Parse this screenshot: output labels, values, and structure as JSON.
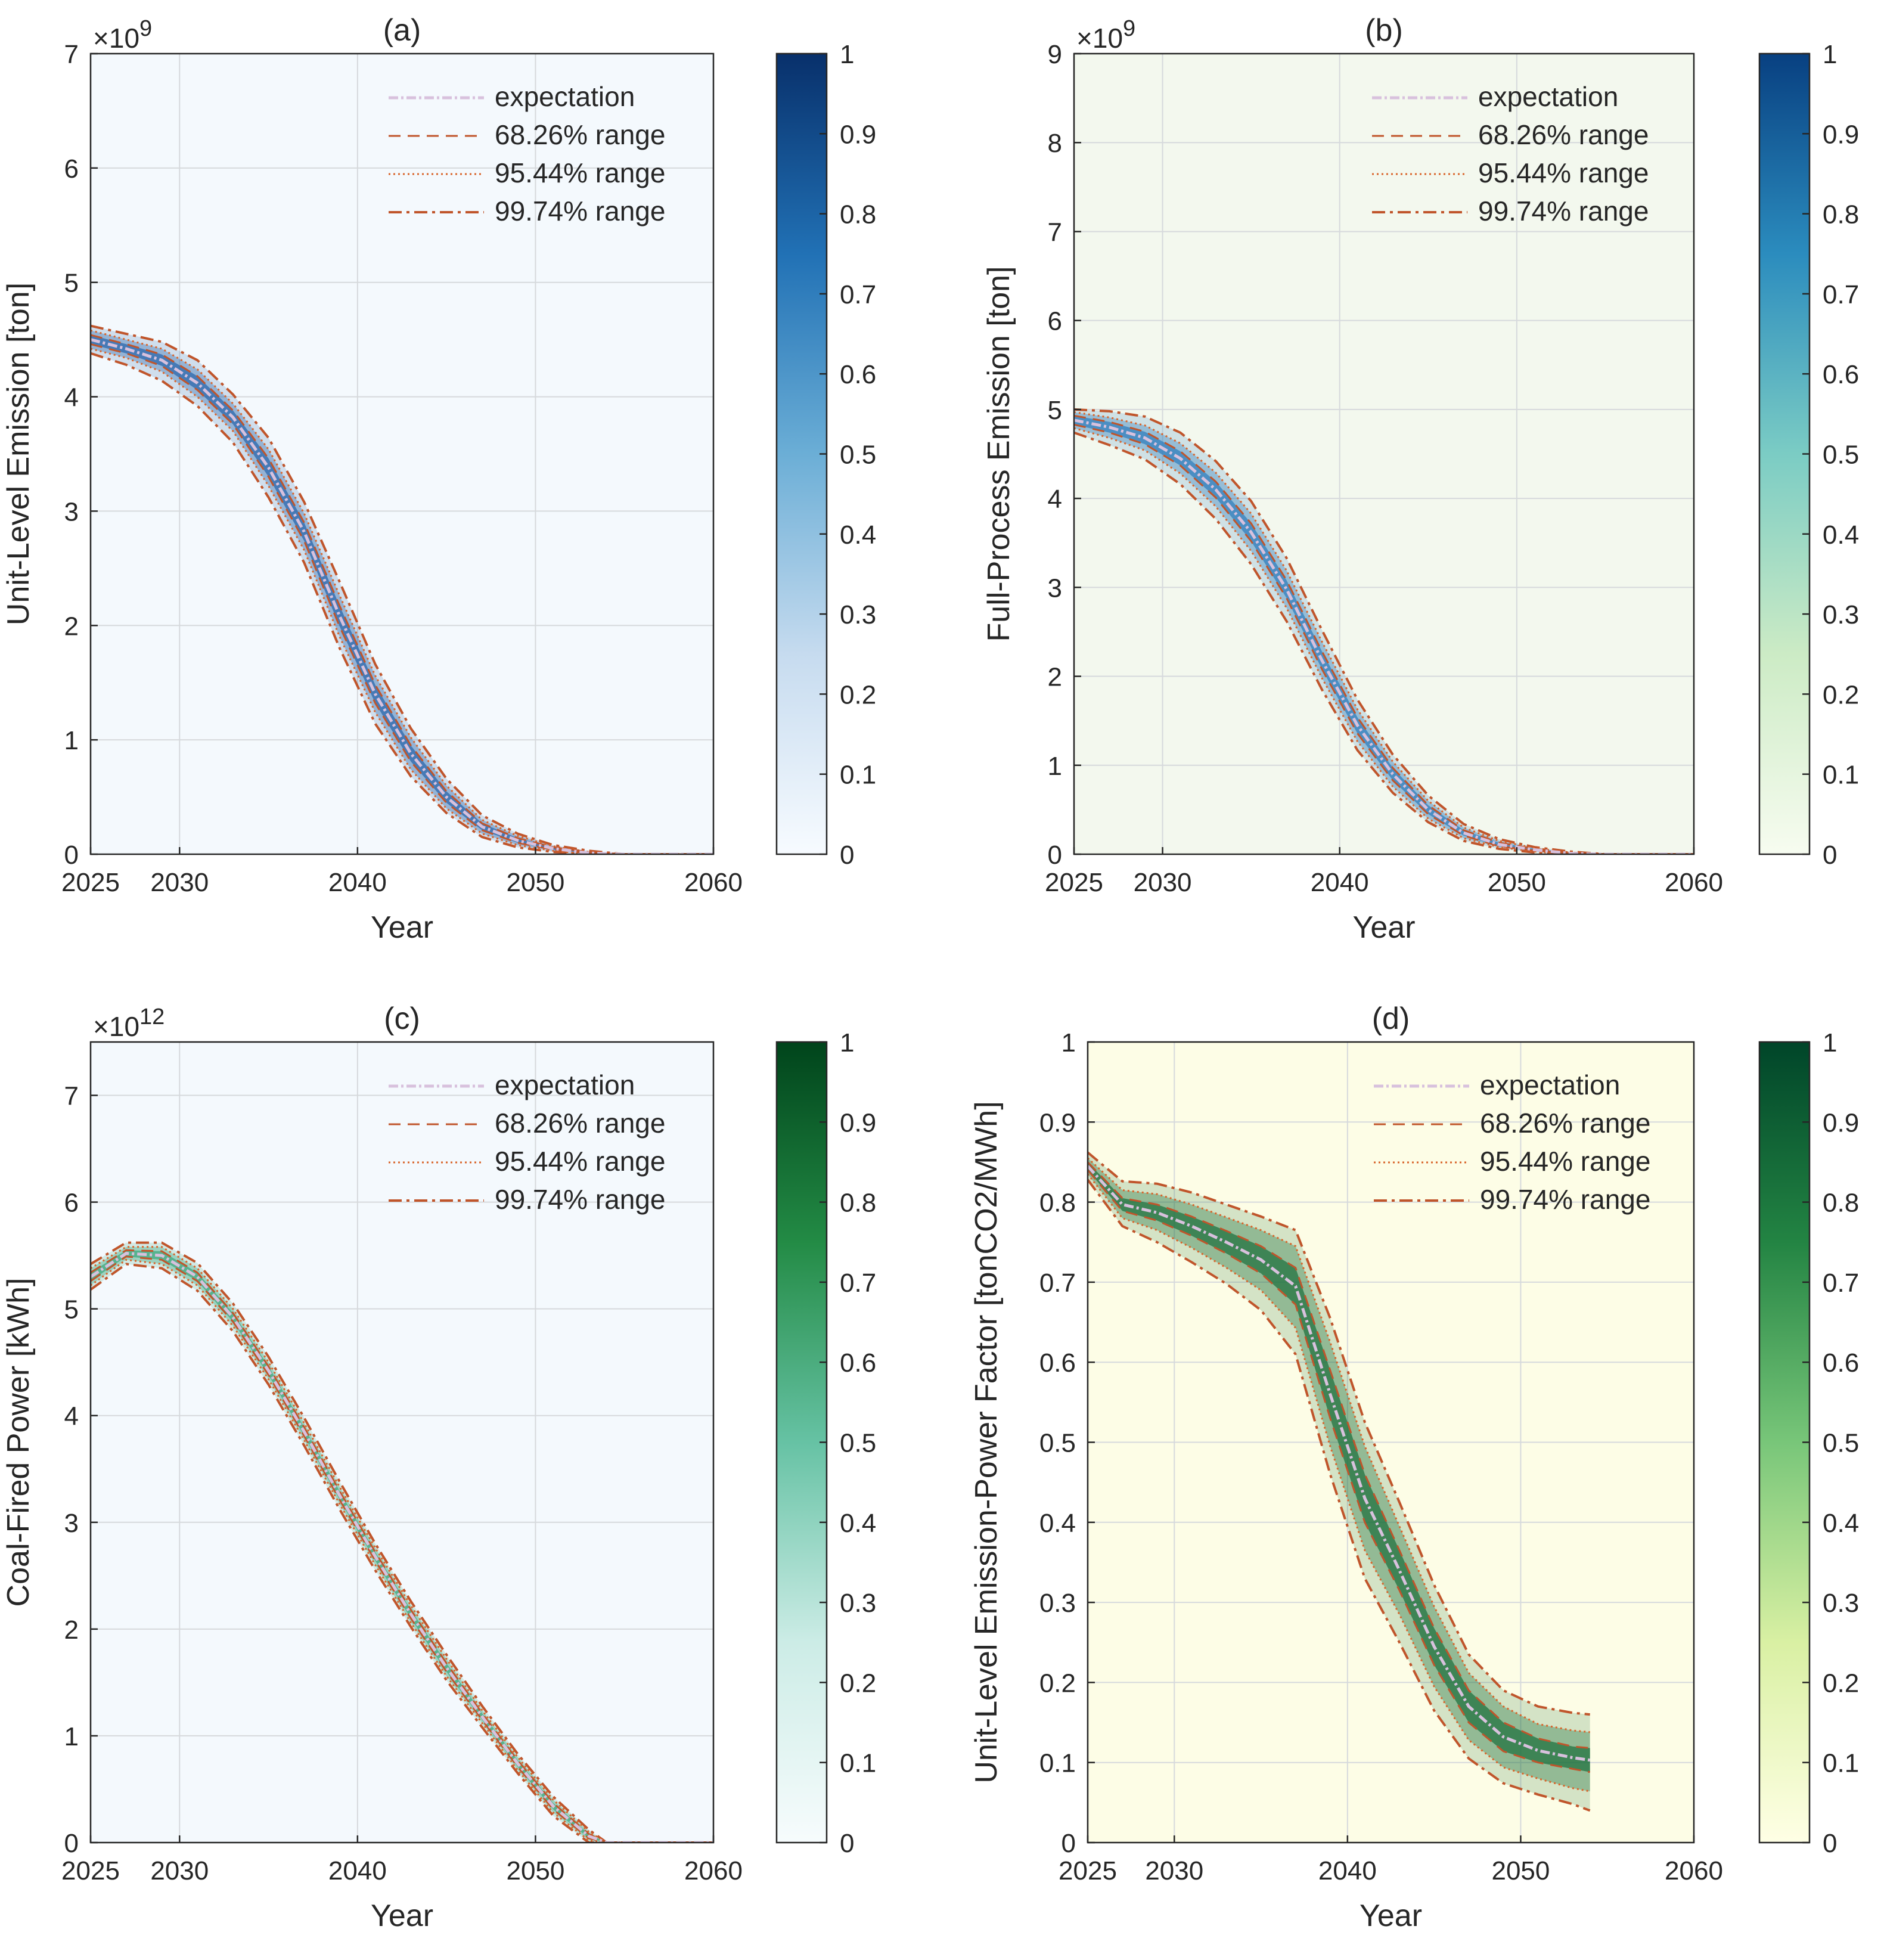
{
  "chart_data": [
    {
      "type": "line",
      "title": "(a)",
      "xlabel": "Year",
      "ylabel": "Unit-Level Emission [ton]",
      "exponent_label": "×10",
      "exponent_power": "9",
      "xlim": [
        2025,
        2060
      ],
      "ylim": [
        0,
        7
      ],
      "xticks": [
        "2025",
        "2030",
        "2040",
        "2050",
        "2060"
      ],
      "yticks": [
        "0",
        "1",
        "2",
        "3",
        "4",
        "5",
        "6",
        "7"
      ],
      "colorbar_ticks": [
        "0",
        "0.1",
        "0.2",
        "0.3",
        "0.4",
        "0.5",
        "0.6",
        "0.7",
        "0.8",
        "0.9",
        "1"
      ],
      "colormap": [
        "#f7fbff",
        "#c6dbef",
        "#6baed6",
        "#2171b5",
        "#08306b"
      ],
      "background": "#f4f9fd",
      "density_color": "#2563a8",
      "legend_position": "top-right",
      "legend": [
        "expectation",
        "68.26% range",
        "95.44% range",
        "99.74% range"
      ],
      "x": [
        2025,
        2027,
        2029,
        2031,
        2033,
        2035,
        2037,
        2039,
        2041,
        2043,
        2045,
        2047,
        2049,
        2051,
        2053,
        2055,
        2057,
        2060
      ],
      "series": [
        {
          "name": "expectation",
          "values": [
            4.5,
            4.42,
            4.32,
            4.12,
            3.82,
            3.38,
            2.82,
            2.08,
            1.4,
            0.88,
            0.5,
            0.24,
            0.12,
            0.05,
            0.01,
            0.0,
            0.0,
            0.0
          ]
        },
        {
          "name": "68.26% range",
          "upper": [
            4.54,
            4.46,
            4.37,
            4.18,
            3.88,
            3.46,
            2.9,
            2.17,
            1.48,
            0.95,
            0.55,
            0.27,
            0.14,
            0.06,
            0.02,
            0.0,
            0.0,
            0.0
          ],
          "lower": [
            4.46,
            4.38,
            4.27,
            4.06,
            3.76,
            3.3,
            2.74,
            1.99,
            1.32,
            0.81,
            0.45,
            0.21,
            0.1,
            0.04,
            0.01,
            0.0,
            0.0,
            0.0
          ]
        },
        {
          "name": "95.44% range",
          "upper": [
            4.58,
            4.5,
            4.42,
            4.24,
            3.94,
            3.54,
            2.98,
            2.26,
            1.56,
            1.02,
            0.6,
            0.3,
            0.16,
            0.07,
            0.02,
            0.0,
            0.0,
            0.0
          ],
          "lower": [
            4.42,
            4.34,
            4.22,
            4.0,
            3.7,
            3.22,
            2.66,
            1.9,
            1.24,
            0.74,
            0.4,
            0.18,
            0.08,
            0.03,
            0.0,
            0.0,
            0.0,
            0.0
          ]
        },
        {
          "name": "99.74% range",
          "upper": [
            4.62,
            4.55,
            4.48,
            4.32,
            4.02,
            3.64,
            3.08,
            2.38,
            1.66,
            1.1,
            0.66,
            0.34,
            0.18,
            0.08,
            0.03,
            0.0,
            0.0,
            0.0
          ],
          "lower": [
            4.38,
            4.28,
            4.14,
            3.92,
            3.6,
            3.12,
            2.55,
            1.8,
            1.14,
            0.68,
            0.36,
            0.15,
            0.06,
            0.02,
            0.0,
            0.0,
            0.0,
            0.0
          ]
        }
      ]
    },
    {
      "type": "line",
      "title": "(b)",
      "xlabel": "Year",
      "ylabel": "Full-Process Emission [ton]",
      "exponent_label": "×10",
      "exponent_power": "9",
      "xlim": [
        2025,
        2060
      ],
      "ylim": [
        0,
        9
      ],
      "xticks": [
        "2025",
        "2030",
        "2040",
        "2050",
        "2060"
      ],
      "yticks": [
        "0",
        "1",
        "2",
        "3",
        "4",
        "5",
        "6",
        "7",
        "8",
        "9"
      ],
      "colorbar_ticks": [
        "0",
        "0.1",
        "0.2",
        "0.3",
        "0.4",
        "0.5",
        "0.6",
        "0.7",
        "0.8",
        "0.9",
        "1"
      ],
      "colormap": [
        "#f7fcf0",
        "#ccebc5",
        "#7bccc4",
        "#2b8cbe",
        "#084081"
      ],
      "background": "#f3f8ee",
      "density_color": "#2b7bba",
      "legend_position": "top-right",
      "legend": [
        "expectation",
        "68.26% range",
        "95.44% range",
        "99.74% range"
      ],
      "x": [
        2025,
        2027,
        2029,
        2031,
        2033,
        2035,
        2037,
        2039,
        2041,
        2043,
        2045,
        2047,
        2049,
        2051,
        2053,
        2055,
        2057,
        2060
      ],
      "series": [
        {
          "name": "expectation",
          "values": [
            4.88,
            4.8,
            4.68,
            4.45,
            4.1,
            3.62,
            2.98,
            2.18,
            1.45,
            0.9,
            0.5,
            0.24,
            0.11,
            0.05,
            0.01,
            0.0,
            0.0,
            0.0
          ]
        },
        {
          "name": "68.26% range",
          "upper": [
            4.93,
            4.86,
            4.75,
            4.53,
            4.19,
            3.72,
            3.08,
            2.28,
            1.54,
            0.97,
            0.55,
            0.27,
            0.13,
            0.06,
            0.02,
            0.0,
            0.0,
            0.0
          ],
          "lower": [
            4.83,
            4.74,
            4.61,
            4.37,
            4.01,
            3.52,
            2.88,
            2.08,
            1.36,
            0.83,
            0.45,
            0.21,
            0.09,
            0.04,
            0.01,
            0.0,
            0.0,
            0.0
          ]
        },
        {
          "name": "95.44% range",
          "upper": [
            4.97,
            4.91,
            4.82,
            4.62,
            4.29,
            3.83,
            3.19,
            2.39,
            1.63,
            1.04,
            0.6,
            0.3,
            0.15,
            0.07,
            0.02,
            0.0,
            0.0,
            0.0
          ],
          "lower": [
            4.79,
            4.68,
            4.54,
            4.28,
            3.91,
            3.41,
            2.77,
            1.98,
            1.27,
            0.76,
            0.4,
            0.18,
            0.08,
            0.03,
            0.0,
            0.0,
            0.0,
            0.0
          ]
        },
        {
          "name": "99.74% range",
          "upper": [
            5.0,
            4.98,
            4.92,
            4.74,
            4.42,
            3.97,
            3.33,
            2.52,
            1.74,
            1.12,
            0.66,
            0.34,
            0.17,
            0.08,
            0.03,
            0.0,
            0.0,
            0.0
          ],
          "lower": [
            4.74,
            4.6,
            4.44,
            4.16,
            3.77,
            3.26,
            2.62,
            1.85,
            1.17,
            0.69,
            0.36,
            0.15,
            0.06,
            0.02,
            0.0,
            0.0,
            0.0,
            0.0
          ]
        }
      ]
    },
    {
      "type": "line",
      "title": "(c)",
      "xlabel": "Year",
      "ylabel": "Coal-Fired Power [kWh]",
      "exponent_label": "×10",
      "exponent_power": "12",
      "xlim": [
        2025,
        2060
      ],
      "ylim": [
        0,
        7.5
      ],
      "xticks": [
        "2025",
        "2030",
        "2040",
        "2050",
        "2060"
      ],
      "yticks": [
        "0",
        "1",
        "2",
        "3",
        "4",
        "5",
        "6",
        "7"
      ],
      "colorbar_ticks": [
        "0",
        "0.1",
        "0.2",
        "0.3",
        "0.4",
        "0.5",
        "0.6",
        "0.7",
        "0.8",
        "0.9",
        "1"
      ],
      "colormap": [
        "#f7fcfd",
        "#ccece6",
        "#66c2a4",
        "#238b45",
        "#00441b"
      ],
      "background": "#f4f9fd",
      "density_color": "#3aa57a",
      "legend_position": "top-right",
      "legend": [
        "expectation",
        "68.26% range",
        "95.44% range",
        "99.74% range"
      ],
      "x": [
        2025,
        2027,
        2029,
        2031,
        2033,
        2035,
        2037,
        2039,
        2041,
        2043,
        2045,
        2047,
        2049,
        2051,
        2053,
        2054,
        2055,
        2057,
        2060
      ],
      "series": [
        {
          "name": "expectation",
          "values": [
            5.3,
            5.52,
            5.5,
            5.3,
            4.92,
            4.42,
            3.85,
            3.25,
            2.68,
            2.14,
            1.64,
            1.18,
            0.74,
            0.34,
            0.06,
            0.0,
            0.0,
            0.0,
            0.0
          ]
        },
        {
          "name": "68.26% range",
          "upper": [
            5.34,
            5.55,
            5.54,
            5.34,
            4.96,
            4.46,
            3.89,
            3.29,
            2.72,
            2.18,
            1.68,
            1.21,
            0.77,
            0.37,
            0.08,
            0.0,
            0.0,
            0.0,
            0.0
          ],
          "lower": [
            5.26,
            5.49,
            5.46,
            5.26,
            4.88,
            4.38,
            3.81,
            3.21,
            2.64,
            2.1,
            1.6,
            1.15,
            0.71,
            0.31,
            0.04,
            0.0,
            0.0,
            0.0,
            0.0
          ]
        },
        {
          "name": "95.44% range",
          "upper": [
            5.38,
            5.58,
            5.58,
            5.38,
            5.0,
            4.5,
            3.93,
            3.33,
            2.76,
            2.22,
            1.72,
            1.24,
            0.8,
            0.4,
            0.1,
            0.0,
            0.0,
            0.0,
            0.0
          ],
          "lower": [
            5.22,
            5.46,
            5.42,
            5.22,
            4.84,
            4.34,
            3.77,
            3.17,
            2.6,
            2.06,
            1.56,
            1.12,
            0.68,
            0.28,
            0.02,
            0.0,
            0.0,
            0.0,
            0.0
          ]
        },
        {
          "name": "99.74% range",
          "upper": [
            5.42,
            5.62,
            5.62,
            5.43,
            5.05,
            4.55,
            3.98,
            3.38,
            2.8,
            2.26,
            1.76,
            1.28,
            0.83,
            0.43,
            0.12,
            0.0,
            0.0,
            0.0,
            0.0
          ],
          "lower": [
            5.18,
            5.42,
            5.38,
            5.17,
            4.79,
            4.29,
            3.72,
            3.12,
            2.55,
            2.02,
            1.52,
            1.08,
            0.65,
            0.25,
            0.0,
            0.0,
            0.0,
            0.0,
            0.0
          ]
        }
      ]
    },
    {
      "type": "line",
      "title": "(d)",
      "xlabel": "Year",
      "ylabel": "Unit-Level Emission-Power Factor [tonCO2/MWh]",
      "exponent_label": "",
      "exponent_power": "",
      "xlim": [
        2025,
        2060
      ],
      "ylim": [
        0,
        1
      ],
      "xticks": [
        "2025",
        "2030",
        "2040",
        "2050",
        "2060"
      ],
      "yticks": [
        "0",
        "0.1",
        "0.2",
        "0.3",
        "0.4",
        "0.5",
        "0.6",
        "0.7",
        "0.8",
        "0.9",
        "1"
      ],
      "colorbar_ticks": [
        "0",
        "0.1",
        "0.2",
        "0.3",
        "0.4",
        "0.5",
        "0.6",
        "0.7",
        "0.8",
        "0.9",
        "1"
      ],
      "colormap": [
        "#ffffe5",
        "#d9f0a3",
        "#78c679",
        "#238443",
        "#004529"
      ],
      "background": "#fdfde6",
      "density_color": "#1a6e3a",
      "legend_position": "top-right",
      "legend": [
        "expectation",
        "68.26% range",
        "95.44% range",
        "99.74% range"
      ],
      "x": [
        2025,
        2027,
        2029,
        2031,
        2033,
        2035,
        2037,
        2039,
        2041,
        2043,
        2045,
        2047,
        2049,
        2051,
        2053,
        2054
      ],
      "series": [
        {
          "name": "expectation",
          "values": [
            0.845,
            0.797,
            0.787,
            0.77,
            0.75,
            0.728,
            0.695,
            0.56,
            0.43,
            0.34,
            0.245,
            0.17,
            0.132,
            0.115,
            0.106,
            0.103
          ]
        },
        {
          "name": "68.26% range",
          "upper": [
            0.85,
            0.805,
            0.797,
            0.782,
            0.764,
            0.745,
            0.718,
            0.59,
            0.46,
            0.365,
            0.268,
            0.19,
            0.15,
            0.13,
            0.12,
            0.118
          ],
          "lower": [
            0.84,
            0.789,
            0.777,
            0.758,
            0.736,
            0.711,
            0.672,
            0.53,
            0.4,
            0.315,
            0.222,
            0.15,
            0.114,
            0.1,
            0.092,
            0.088
          ]
        },
        {
          "name": "95.44% range",
          "upper": [
            0.855,
            0.815,
            0.81,
            0.797,
            0.781,
            0.765,
            0.745,
            0.625,
            0.495,
            0.395,
            0.295,
            0.212,
            0.17,
            0.148,
            0.14,
            0.138
          ],
          "lower": [
            0.835,
            0.78,
            0.765,
            0.743,
            0.718,
            0.69,
            0.643,
            0.495,
            0.365,
            0.285,
            0.195,
            0.128,
            0.094,
            0.08,
            0.068,
            0.064
          ]
        },
        {
          "name": "99.74% range",
          "upper": [
            0.862,
            0.826,
            0.823,
            0.812,
            0.797,
            0.782,
            0.765,
            0.655,
            0.525,
            0.425,
            0.322,
            0.235,
            0.19,
            0.17,
            0.162,
            0.16
          ],
          "lower": [
            0.828,
            0.77,
            0.75,
            0.725,
            0.698,
            0.665,
            0.61,
            0.46,
            0.33,
            0.25,
            0.165,
            0.105,
            0.074,
            0.06,
            0.048,
            0.04
          ]
        }
      ]
    }
  ]
}
